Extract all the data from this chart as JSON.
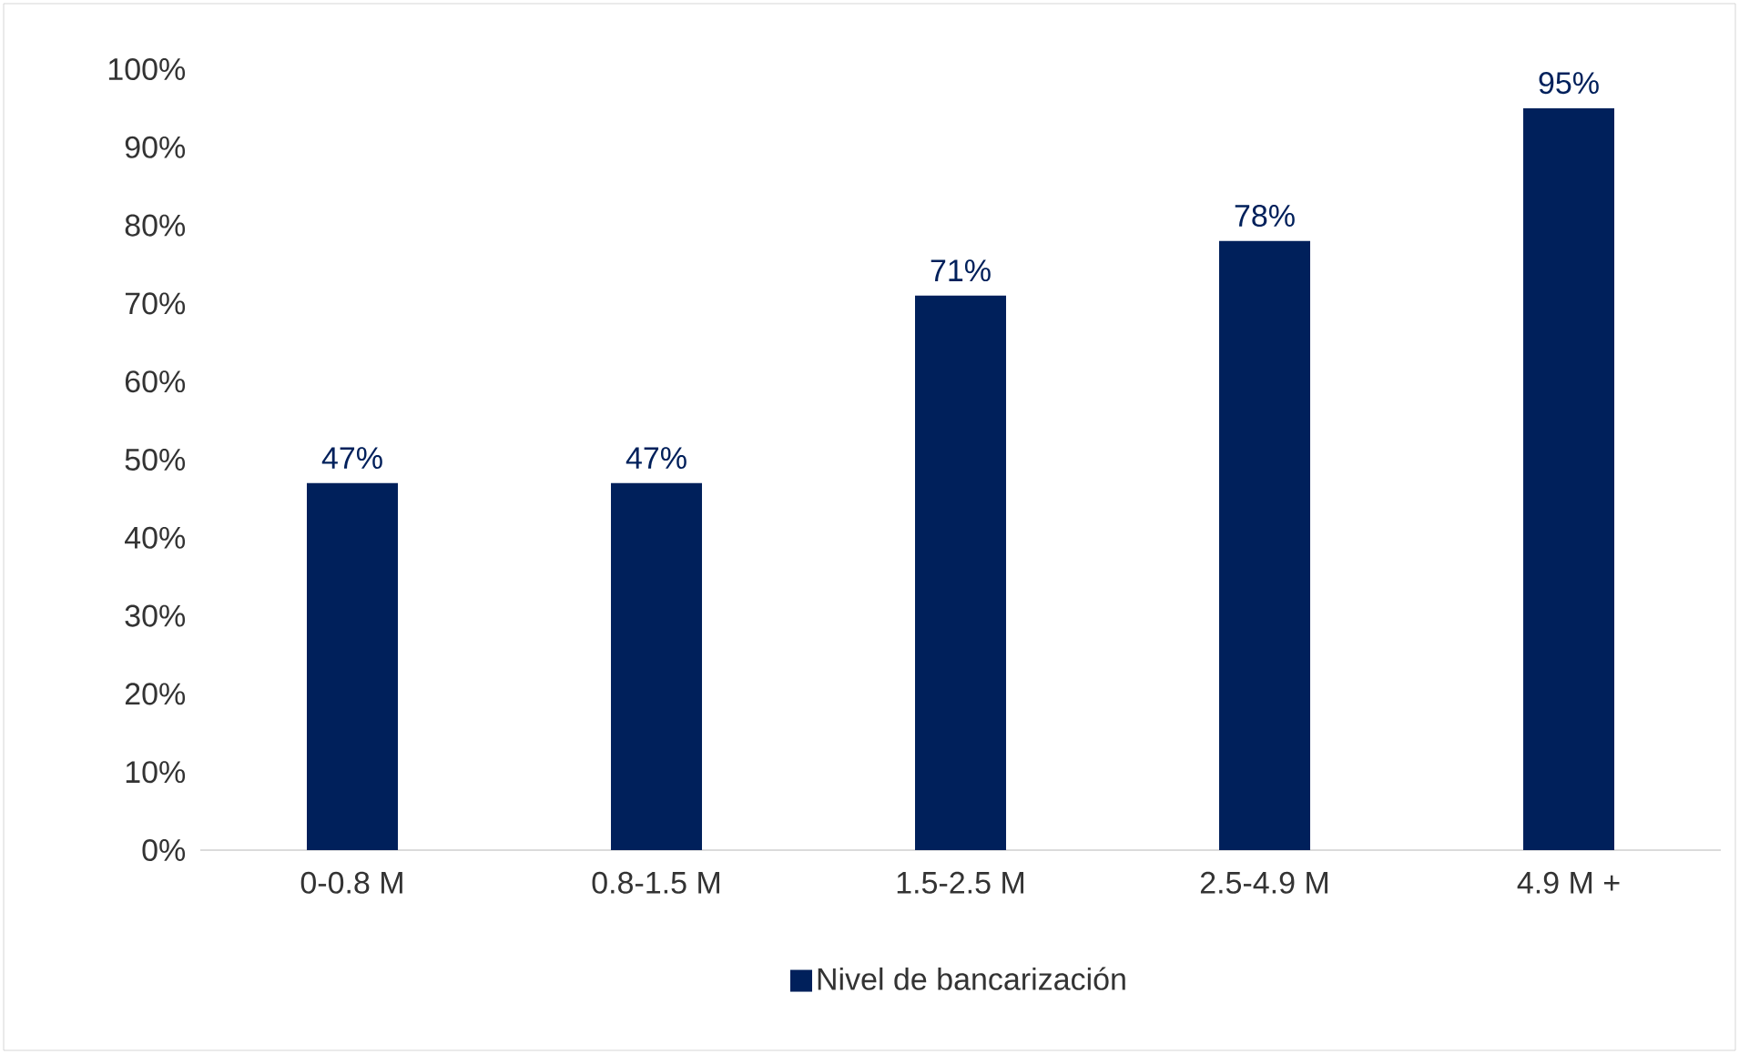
{
  "chart_data": {
    "type": "bar",
    "categories": [
      "0-0.8 M",
      "0.8-1.5 M",
      "1.5-2.5 M",
      "2.5-4.9 M",
      "4.9 M +"
    ],
    "series": [
      {
        "name": "Nivel de bancarización",
        "color": "#00205b",
        "values": [
          47,
          47,
          71,
          78,
          95
        ],
        "value_labels": [
          "47%",
          "47%",
          "71%",
          "78%",
          "95%"
        ]
      }
    ],
    "ylim": [
      0,
      100
    ],
    "yticks": [
      {
        "value": 0,
        "label": "0%"
      },
      {
        "value": 10,
        "label": "10%"
      },
      {
        "value": 20,
        "label": "20%"
      },
      {
        "value": 30,
        "label": "30%"
      },
      {
        "value": 40,
        "label": "40%"
      },
      {
        "value": 50,
        "label": "50%"
      },
      {
        "value": 60,
        "label": "60%"
      },
      {
        "value": 70,
        "label": "70%"
      },
      {
        "value": 80,
        "label": "80%"
      },
      {
        "value": 90,
        "label": "90%"
      },
      {
        "value": 100,
        "label": "100%"
      }
    ],
    "legend": "bottom",
    "grid": false
  }
}
